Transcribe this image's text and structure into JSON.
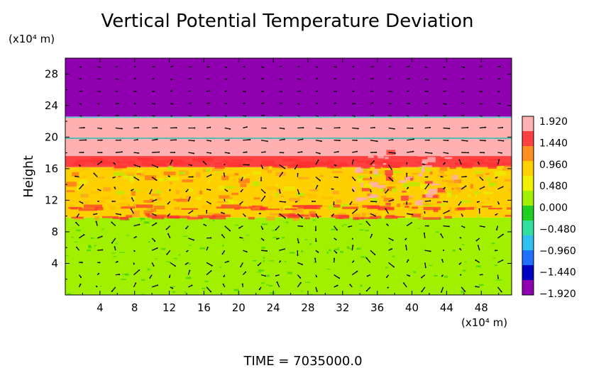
{
  "chart_data": {
    "type": "heatmap",
    "title": "Vertical Potential Temperature Deviation",
    "ylabel": "Height",
    "y_unit": "(x10⁴ m)",
    "x_unit": "(x10⁴ m)",
    "xlim": [
      0,
      51.5
    ],
    "ylim": [
      0,
      30
    ],
    "x_ticks": [
      "4",
      "8",
      "12",
      "16",
      "20",
      "24",
      "28",
      "32",
      "36",
      "40",
      "44",
      "48"
    ],
    "x_tick_values": [
      4,
      8,
      12,
      16,
      20,
      24,
      28,
      32,
      36,
      40,
      44,
      48
    ],
    "y_ticks": [
      "4",
      "8",
      "12",
      "16",
      "20",
      "24",
      "28"
    ],
    "y_tick_values": [
      4,
      8,
      12,
      16,
      20,
      24,
      28
    ],
    "colorbar": {
      "labels": [
        "1.920",
        "1.440",
        "0.960",
        "0.480",
        "0.000",
        "−0.480",
        "−0.960",
        "−1.440",
        "−1.920"
      ],
      "values": [
        1.92,
        1.44,
        0.96,
        0.48,
        0.0,
        -0.48,
        -0.96,
        -1.44,
        -1.92
      ],
      "colors": [
        "#ffb0b0",
        "#ff4040",
        "#ff9020",
        "#ffd000",
        "#f0f000",
        "#a0f000",
        "#20d020",
        "#30e0a0",
        "#30c0f0",
        "#2070ff",
        "#0000c0",
        "#9000b0"
      ]
    },
    "layers": [
      {
        "y_from": 0,
        "y_to": 9.8,
        "value": 0.2
      },
      {
        "y_from": 9.8,
        "y_to": 16.2,
        "value": 0.9
      },
      {
        "y_from": 16.2,
        "y_to": 17.6,
        "value": 1.4
      },
      {
        "y_from": 17.6,
        "y_to": 22.6,
        "value": 1.92
      },
      {
        "y_from": 22.6,
        "y_to": 30,
        "value": -1.92
      }
    ],
    "vectors": "wind arrows overlaid on grid"
  },
  "footer": {
    "time_label": "TIME  =  7035000.0"
  }
}
